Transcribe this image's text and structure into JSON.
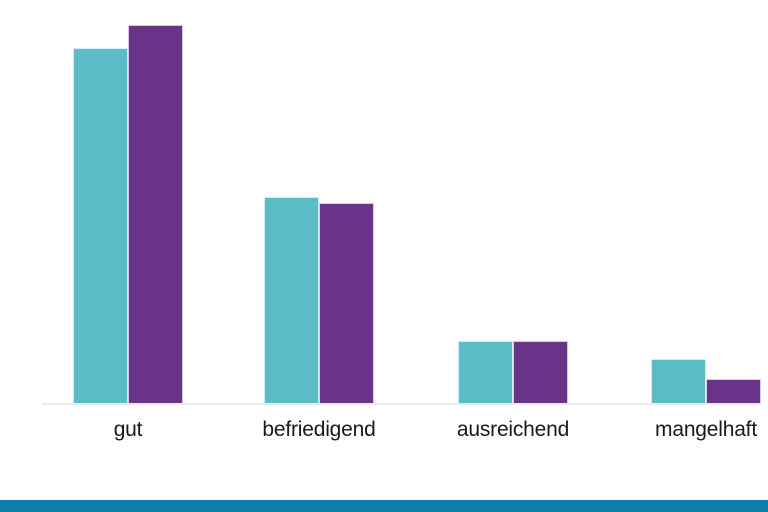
{
  "chart_data": {
    "type": "bar",
    "title": "",
    "categories": [
      "gut",
      "befriedigend",
      "ausreichend",
      "mangelhaft"
    ],
    "series": [
      {
        "name": "series-1-teal",
        "color": "#5bbbc7",
        "values": [
          94,
          54.5,
          16.5,
          12
        ]
      },
      {
        "name": "series-2-purple",
        "color": "#6b3388",
        "values": [
          100,
          53,
          16.5,
          6.5
        ]
      }
    ],
    "xlabel": "",
    "ylabel": "",
    "ylim": [
      0,
      105
    ],
    "units": "relative height (no value axis shown)",
    "grid": false,
    "legend": "none"
  },
  "axis": {
    "line_color": "#ebebec",
    "label_color": "#1a1a1a"
  },
  "footer": {
    "accent_color": "#0e80a9"
  }
}
